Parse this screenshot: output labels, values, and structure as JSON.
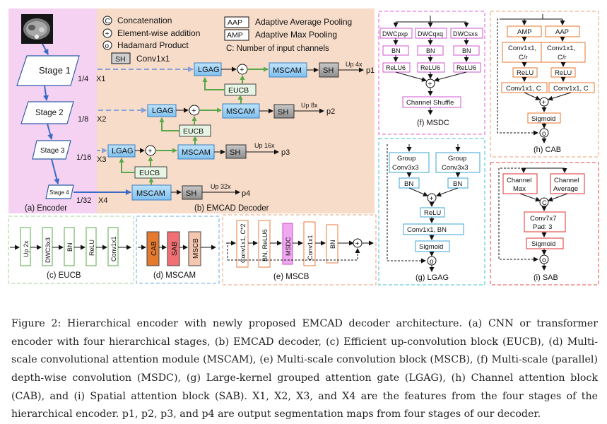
{
  "figure": {
    "legend": {
      "c_symbol": "C",
      "concat": "Concatenation",
      "plus_symbol": "+",
      "add": "Element-wise addition",
      "o_symbol": "o",
      "hadamard": "Hadamard Product",
      "sh_abbr": "SH",
      "sh": "Conv1x1",
      "aap_abbr": "AAP",
      "aap": "Adaptive Average Pooling",
      "amp_abbr": "AMP",
      "amp": "Adaptive Max Pooling",
      "channels": "C: Number of input channels"
    },
    "encoder": {
      "stages": [
        "Stage 1",
        "Stage 2",
        "Stage 3",
        "Stage 4"
      ],
      "scales": [
        "1/4",
        "1/8",
        "1/16",
        "1/32"
      ],
      "features": [
        "X1",
        "X2",
        "X3",
        "X4"
      ],
      "label": "(a) Encoder"
    },
    "decoder": {
      "label": "(b) EMCAD Decoder",
      "lgag": "LGAG",
      "mscam": "MSCAM",
      "sh": "SH",
      "eucb": "EUCB",
      "plus": "+",
      "ups": [
        "Up 4x",
        "Up 8x",
        "Up 16x",
        "Up 32x"
      ],
      "outputs": [
        "p1",
        "p2",
        "p3",
        "p4"
      ]
    },
    "eucb": {
      "blocks": [
        "Up 2x",
        "DWC3x3",
        "BN",
        "ReLU",
        "Conv1x1"
      ],
      "label": "(c) EUCB"
    },
    "mscam": {
      "blocks": [
        "CAB",
        "SAB",
        "MSCB"
      ],
      "label": "(d) MSCAM"
    },
    "mscb": {
      "blocks": [
        "Conv1x1, C*2",
        "BN, ReLU6",
        "MSDC",
        "Conv1x1",
        "BN"
      ],
      "plus": "+",
      "label": "(e) MSCB"
    },
    "msdc": {
      "dwc": [
        "DWCpxp",
        "DWCqxq",
        "DWCsxs"
      ],
      "bn": "BN",
      "relu": "ReLU6",
      "plus": "+",
      "shuffle": "Channel Shuffle",
      "label": "(f) MSDC"
    },
    "lgag": {
      "group_line1": "Group",
      "group_line2": "Conv3x3",
      "bn": "BN",
      "plus": "+",
      "relu": "ReLU",
      "conv": "Conv1x1, BN",
      "sigmoid": "Sigmoid",
      "o": "o",
      "label": "(g) LGAG"
    },
    "cab": {
      "amp": "AMP",
      "aap": "AAP",
      "conv1_line1": "Conv1x1,",
      "conv1_line2": "C/r",
      "relu": "ReLU",
      "conv2": "Conv1x1, C",
      "plus": "+",
      "sigmoid": "Sigmoid",
      "o": "o",
      "label": "(h) CAB"
    },
    "sab": {
      "max_line1": "Channel",
      "max_line2": "Max",
      "avg_line1": "Channel",
      "avg_line2": "Average",
      "c": "C",
      "conv_line1": "Conv7x7",
      "conv_line2": "Pad: 3",
      "sigmoid": "Sigmoid",
      "o": "o",
      "label": "(i) SAB"
    }
  },
  "caption": "Figure 2: Hierarchical encoder with newly proposed EMCAD decoder architecture. (a) CNN or transformer encoder with four hierarchical stages, (b) EMCAD decoder, (c) Efficient up-convolution block (EUCB), (d) Multi-scale convolutional attention module (MSCAM), (e) Multi-scale convolution block (MSCB), (f) Multi-scale (parallel) depth-wise convolution (MSDC), (g) Large-kernel grouped attention gate (LGAG), (h) Channel attention block (CAB), and (i) Spatial attention block (SAB). X1, X2, X3, and X4 are the features from the four stages of the hierarchical encoder. p1, p2, p3, and p4 are output segmentation maps from four stages of our decoder."
}
